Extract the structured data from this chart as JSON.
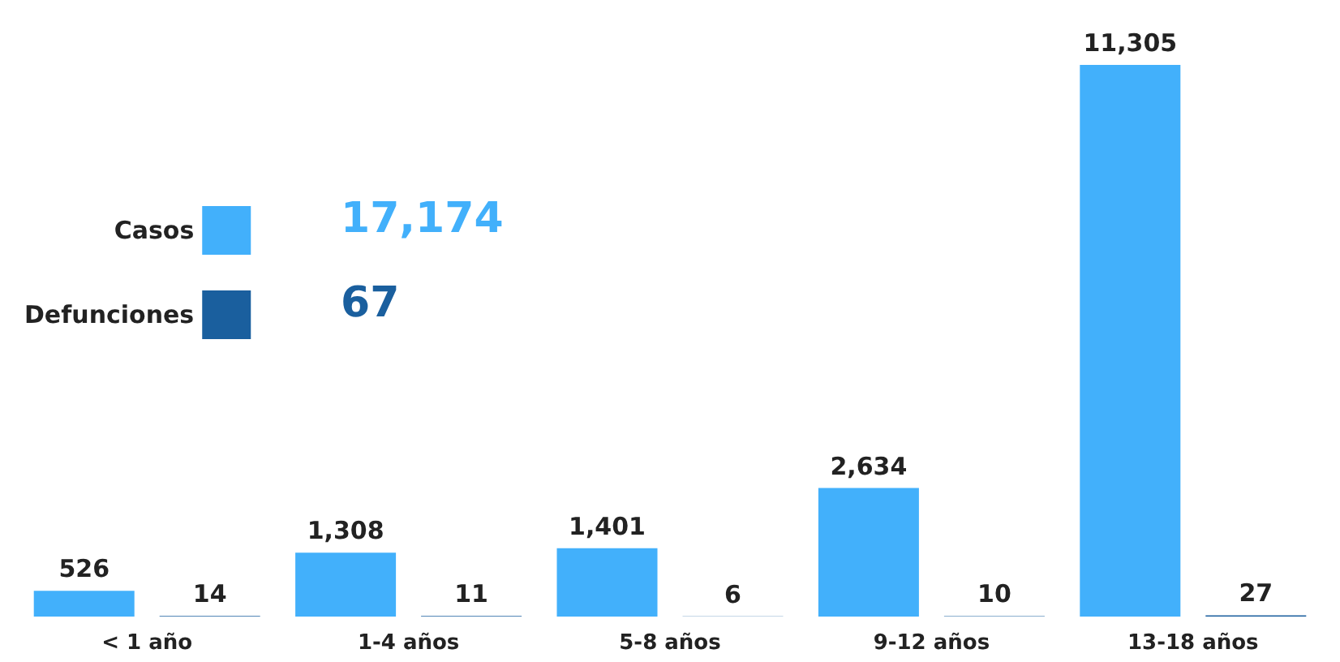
{
  "chart_data": {
    "type": "bar",
    "categories": [
      "< 1 año",
      "1-4 años",
      "5-8 años",
      "9-12 años",
      "13-18 años"
    ],
    "series": [
      {
        "name": "Casos",
        "color": "#42b0fb",
        "values": [
          526,
          1308,
          1401,
          2634,
          11305
        ],
        "value_labels": [
          "526",
          "1,308",
          "1,401",
          "2,634",
          "11,305"
        ]
      },
      {
        "name": "Defunciones",
        "color": "#1a5f9e",
        "values": [
          14,
          11,
          6,
          10,
          27
        ],
        "value_labels": [
          "14",
          "11",
          "6",
          "10",
          "27"
        ]
      }
    ],
    "legend": "left",
    "tick_labels": "x",
    "annotations": [
      "17,174",
      "67"
    ]
  }
}
